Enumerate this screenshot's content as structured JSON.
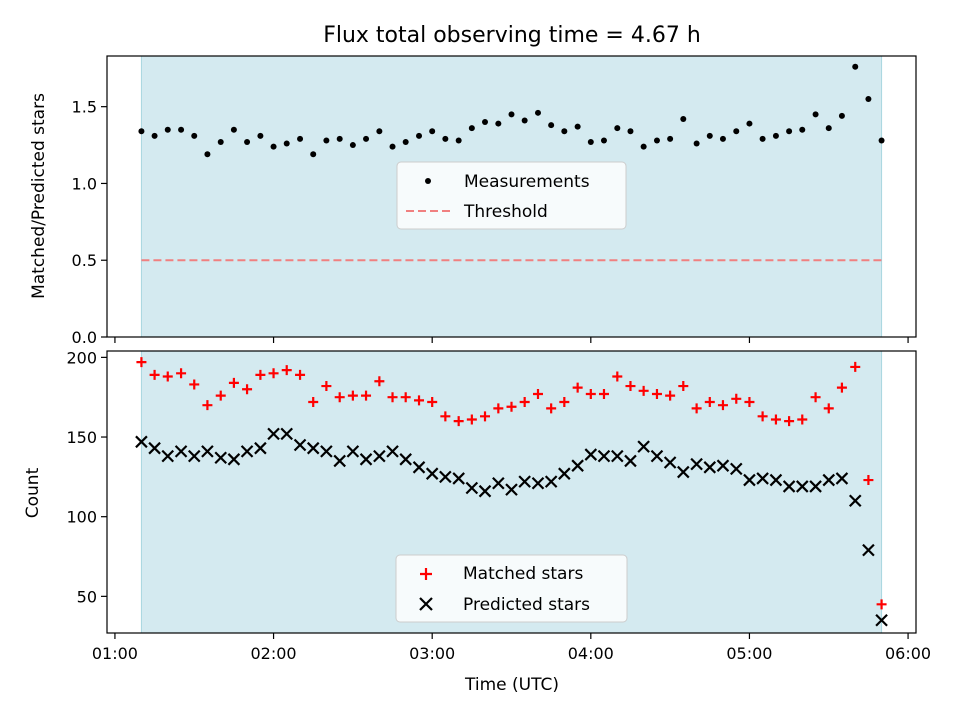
{
  "chart_data": [
    {
      "type": "scatter",
      "title": "Flux total observing time = 4.67 h",
      "ylabel": "Matched/Predicted stars",
      "xlabel": "",
      "xlim_hours": [
        0.95,
        6.05
      ],
      "ylim": [
        0,
        1.83
      ],
      "yticks": [
        0.0,
        0.5,
        1.0,
        1.5
      ],
      "ytick_labels": [
        "0.0",
        "0.5",
        "1.0",
        "1.5"
      ],
      "shaded_interval_hours": [
        1.167,
        5.833
      ],
      "shade_color": "#d4eaf0",
      "legend_position": "center",
      "series": [
        {
          "name": "Measurements",
          "marker": "dot",
          "color": "#000000",
          "x_hours": [
            1.167,
            1.25,
            1.333,
            1.417,
            1.5,
            1.583,
            1.667,
            1.75,
            1.833,
            1.917,
            2.0,
            2.083,
            2.167,
            2.25,
            2.333,
            2.417,
            2.5,
            2.583,
            2.667,
            2.75,
            2.833,
            2.917,
            3.0,
            3.083,
            3.167,
            3.25,
            3.333,
            3.417,
            3.5,
            3.583,
            3.667,
            3.75,
            3.833,
            3.917,
            4.0,
            4.083,
            4.167,
            4.25,
            4.333,
            4.417,
            4.5,
            4.583,
            4.667,
            4.75,
            4.833,
            4.917,
            5.0,
            5.083,
            5.167,
            5.25,
            5.333,
            5.417,
            5.5,
            5.583,
            5.667,
            5.75,
            5.833
          ],
          "values": [
            1.34,
            1.31,
            1.35,
            1.35,
            1.31,
            1.19,
            1.27,
            1.35,
            1.27,
            1.31,
            1.24,
            1.26,
            1.29,
            1.19,
            1.28,
            1.29,
            1.25,
            1.29,
            1.34,
            1.24,
            1.27,
            1.31,
            1.34,
            1.29,
            1.28,
            1.36,
            1.4,
            1.39,
            1.45,
            1.41,
            1.46,
            1.38,
            1.34,
            1.37,
            1.27,
            1.28,
            1.36,
            1.34,
            1.24,
            1.28,
            1.29,
            1.42,
            1.26,
            1.31,
            1.29,
            1.34,
            1.39,
            1.29,
            1.31,
            1.34,
            1.35,
            1.45,
            1.36,
            1.44,
            1.76,
            1.55,
            1.28
          ]
        },
        {
          "name": "Threshold",
          "marker": "dashed-line",
          "color": "#f08080",
          "x_hours": [
            1.167,
            5.833
          ],
          "values": [
            0.5,
            0.5
          ]
        }
      ]
    },
    {
      "type": "scatter",
      "title": "",
      "ylabel": "Count",
      "xlabel": "Time (UTC)",
      "xlim_hours": [
        0.95,
        6.05
      ],
      "ylim": [
        27,
        204
      ],
      "yticks": [
        50,
        100,
        150,
        200
      ],
      "ytick_labels": [
        "50",
        "100",
        "150",
        "200"
      ],
      "xticks_hours": [
        1,
        2,
        3,
        4,
        5,
        6
      ],
      "xtick_labels": [
        "01:00",
        "02:00",
        "03:00",
        "04:00",
        "05:00",
        "06:00"
      ],
      "shaded_interval_hours": [
        1.167,
        5.833
      ],
      "shade_color": "#d4eaf0",
      "legend_position": "lower center",
      "series": [
        {
          "name": "Matched stars",
          "marker": "plus",
          "color": "#ff0000",
          "x_hours": [
            1.167,
            1.25,
            1.333,
            1.417,
            1.5,
            1.583,
            1.667,
            1.75,
            1.833,
            1.917,
            2.0,
            2.083,
            2.167,
            2.25,
            2.333,
            2.417,
            2.5,
            2.583,
            2.667,
            2.75,
            2.833,
            2.917,
            3.0,
            3.083,
            3.167,
            3.25,
            3.333,
            3.417,
            3.5,
            3.583,
            3.667,
            3.75,
            3.833,
            3.917,
            4.0,
            4.083,
            4.167,
            4.25,
            4.333,
            4.417,
            4.5,
            4.583,
            4.667,
            4.75,
            4.833,
            4.917,
            5.0,
            5.083,
            5.167,
            5.25,
            5.333,
            5.417,
            5.5,
            5.583,
            5.667,
            5.75,
            5.833
          ],
          "values": [
            197,
            189,
            188,
            190,
            183,
            170,
            176,
            184,
            180,
            189,
            190,
            192,
            189,
            172,
            182,
            175,
            176,
            176,
            185,
            175,
            175,
            173,
            172,
            163,
            160,
            161,
            163,
            168,
            169,
            172,
            177,
            168,
            172,
            181,
            177,
            177,
            188,
            182,
            179,
            177,
            176,
            182,
            168,
            172,
            170,
            174,
            172,
            163,
            161,
            160,
            161,
            175,
            168,
            181,
            194,
            123,
            45
          ]
        },
        {
          "name": "Predicted stars",
          "marker": "x",
          "color": "#000000",
          "x_hours": [
            1.167,
            1.25,
            1.333,
            1.417,
            1.5,
            1.583,
            1.667,
            1.75,
            1.833,
            1.917,
            2.0,
            2.083,
            2.167,
            2.25,
            2.333,
            2.417,
            2.5,
            2.583,
            2.667,
            2.75,
            2.833,
            2.917,
            3.0,
            3.083,
            3.167,
            3.25,
            3.333,
            3.417,
            3.5,
            3.583,
            3.667,
            3.75,
            3.833,
            3.917,
            4.0,
            4.083,
            4.167,
            4.25,
            4.333,
            4.417,
            4.5,
            4.583,
            4.667,
            4.75,
            4.833,
            4.917,
            5.0,
            5.083,
            5.167,
            5.25,
            5.333,
            5.417,
            5.5,
            5.583,
            5.667,
            5.75,
            5.833
          ],
          "values": [
            147,
            143,
            138,
            141,
            138,
            141,
            137,
            136,
            141,
            143,
            152,
            152,
            145,
            143,
            141,
            135,
            141,
            136,
            138,
            141,
            136,
            131,
            127,
            125,
            124,
            118,
            116,
            121,
            117,
            122,
            121,
            122,
            127,
            132,
            139,
            138,
            138,
            135,
            144,
            138,
            134,
            128,
            133,
            131,
            132,
            130,
            123,
            124,
            123,
            119,
            119,
            119,
            123,
            124,
            110,
            79,
            35
          ]
        }
      ]
    }
  ]
}
